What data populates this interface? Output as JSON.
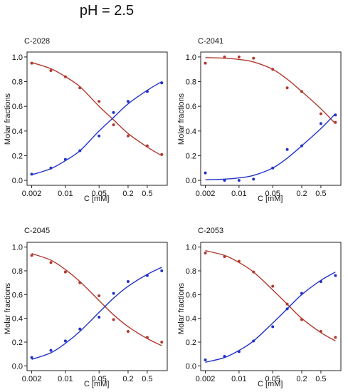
{
  "title": "pH = 2.5",
  "colors": {
    "red": "#b03a2e",
    "blue": "#2233c8",
    "axis": "#222222"
  },
  "chart_data": [
    {
      "type": "scatter",
      "panel": "C-2028",
      "xlabel": "C [mM]",
      "ylabel": "Molar fractions",
      "x_scale": "log",
      "xlim": [
        0.0016,
        1.3
      ],
      "ylim": [
        -0.04,
        1.04
      ],
      "x_ticks": [
        0.002,
        0.01,
        0.05,
        0.2,
        0.5
      ],
      "x_tick_labels": [
        "0.002",
        "0.01",
        "0.05",
        "0.2",
        "0.5"
      ],
      "y_ticks": [
        0.0,
        0.2,
        0.4,
        0.6,
        0.8,
        1.0
      ],
      "y_tick_labels": [
        "0.0",
        "0.2",
        "0.4",
        "0.6",
        "0.8",
        "1.0"
      ],
      "series": [
        {
          "color": "red",
          "points": [
            [
              0.002,
              0.95
            ],
            [
              0.005,
              0.89
            ],
            [
              0.01,
              0.84
            ],
            [
              0.02,
              0.75
            ],
            [
              0.05,
              0.64
            ],
            [
              0.1,
              0.45
            ],
            [
              0.2,
              0.36
            ],
            [
              0.5,
              0.28
            ],
            [
              1.0,
              0.21
            ]
          ],
          "curve": [
            [
              0.002,
              0.955
            ],
            [
              0.005,
              0.905
            ],
            [
              0.01,
              0.84
            ],
            [
              0.02,
              0.76
            ],
            [
              0.05,
              0.6
            ],
            [
              0.1,
              0.49
            ],
            [
              0.2,
              0.38
            ],
            [
              0.5,
              0.27
            ],
            [
              1.0,
              0.2
            ]
          ]
        },
        {
          "color": "blue",
          "points": [
            [
              0.002,
              0.05
            ],
            [
              0.005,
              0.1
            ],
            [
              0.01,
              0.17
            ],
            [
              0.02,
              0.24
            ],
            [
              0.05,
              0.36
            ],
            [
              0.1,
              0.55
            ],
            [
              0.2,
              0.64
            ],
            [
              0.5,
              0.72
            ],
            [
              1.0,
              0.79
            ]
          ],
          "curve": [
            [
              0.002,
              0.045
            ],
            [
              0.005,
              0.095
            ],
            [
              0.01,
              0.16
            ],
            [
              0.02,
              0.24
            ],
            [
              0.05,
              0.4
            ],
            [
              0.1,
              0.51
            ],
            [
              0.2,
              0.62
            ],
            [
              0.5,
              0.73
            ],
            [
              1.0,
              0.8
            ]
          ]
        }
      ]
    },
    {
      "type": "scatter",
      "panel": "C-2041",
      "xlabel": "C [mM]",
      "ylabel": "Molar fractions",
      "x_scale": "log",
      "xlim": [
        0.0016,
        1.3
      ],
      "ylim": [
        -0.04,
        1.04
      ],
      "x_ticks": [
        0.002,
        0.01,
        0.05,
        0.2,
        0.5
      ],
      "x_tick_labels": [
        "0.002",
        "0.01",
        "0.05",
        "0.2",
        "0.5"
      ],
      "y_ticks": [
        0.0,
        0.2,
        0.4,
        0.6,
        0.8,
        1.0
      ],
      "y_tick_labels": [
        "0.0",
        "0.2",
        "0.4",
        "0.6",
        "0.8",
        "1.0"
      ],
      "series": [
        {
          "color": "red",
          "points": [
            [
              0.002,
              0.95
            ],
            [
              0.005,
              1.0
            ],
            [
              0.01,
              1.0
            ],
            [
              0.02,
              0.99
            ],
            [
              0.05,
              0.9
            ],
            [
              0.1,
              0.75
            ],
            [
              0.2,
              0.72
            ],
            [
              0.5,
              0.54
            ],
            [
              1.0,
              0.47
            ]
          ],
          "curve": [
            [
              0.002,
              0.995
            ],
            [
              0.005,
              0.99
            ],
            [
              0.01,
              0.98
            ],
            [
              0.02,
              0.96
            ],
            [
              0.05,
              0.9
            ],
            [
              0.1,
              0.82
            ],
            [
              0.2,
              0.72
            ],
            [
              0.5,
              0.58
            ],
            [
              1.0,
              0.46
            ]
          ]
        },
        {
          "color": "blue",
          "points": [
            [
              0.002,
              0.06
            ],
            [
              0.005,
              0.0
            ],
            [
              0.01,
              0.0
            ],
            [
              0.02,
              0.01
            ],
            [
              0.05,
              0.1
            ],
            [
              0.1,
              0.25
            ],
            [
              0.2,
              0.28
            ],
            [
              0.5,
              0.46
            ],
            [
              1.0,
              0.53
            ]
          ],
          "curve": [
            [
              0.002,
              0.005
            ],
            [
              0.005,
              0.01
            ],
            [
              0.01,
              0.02
            ],
            [
              0.02,
              0.04
            ],
            [
              0.05,
              0.1
            ],
            [
              0.1,
              0.18
            ],
            [
              0.2,
              0.28
            ],
            [
              0.5,
              0.42
            ],
            [
              1.0,
              0.54
            ]
          ]
        }
      ]
    },
    {
      "type": "scatter",
      "panel": "C-2045",
      "xlabel": "C [mM]",
      "ylabel": "Molar fractions",
      "x_scale": "log",
      "xlim": [
        0.0016,
        1.3
      ],
      "ylim": [
        -0.04,
        1.04
      ],
      "x_ticks": [
        0.002,
        0.01,
        0.05,
        0.2,
        0.5
      ],
      "x_tick_labels": [
        "0.002",
        "0.01",
        "0.05",
        "0.2",
        "0.5"
      ],
      "y_ticks": [
        0.0,
        0.2,
        0.4,
        0.6,
        0.8,
        1.0
      ],
      "y_tick_labels": [
        "0.0",
        "0.2",
        "0.4",
        "0.6",
        "0.8",
        "1.0"
      ],
      "series": [
        {
          "color": "red",
          "points": [
            [
              0.002,
              0.93
            ],
            [
              0.005,
              0.87
            ],
            [
              0.01,
              0.79
            ],
            [
              0.02,
              0.7
            ],
            [
              0.05,
              0.59
            ],
            [
              0.1,
              0.39
            ],
            [
              0.2,
              0.29
            ],
            [
              0.5,
              0.24
            ],
            [
              1.0,
              0.2
            ]
          ],
          "curve": [
            [
              0.002,
              0.945
            ],
            [
              0.005,
              0.89
            ],
            [
              0.01,
              0.81
            ],
            [
              0.02,
              0.71
            ],
            [
              0.05,
              0.55
            ],
            [
              0.1,
              0.43
            ],
            [
              0.2,
              0.33
            ],
            [
              0.5,
              0.23
            ],
            [
              1.0,
              0.17
            ]
          ]
        },
        {
          "color": "blue",
          "points": [
            [
              0.002,
              0.07
            ],
            [
              0.005,
              0.13
            ],
            [
              0.01,
              0.21
            ],
            [
              0.02,
              0.31
            ],
            [
              0.05,
              0.41
            ],
            [
              0.1,
              0.61
            ],
            [
              0.2,
              0.71
            ],
            [
              0.5,
              0.76
            ],
            [
              1.0,
              0.8
            ]
          ],
          "curve": [
            [
              0.002,
              0.055
            ],
            [
              0.005,
              0.11
            ],
            [
              0.01,
              0.19
            ],
            [
              0.02,
              0.29
            ],
            [
              0.05,
              0.45
            ],
            [
              0.1,
              0.57
            ],
            [
              0.2,
              0.67
            ],
            [
              0.5,
              0.77
            ],
            [
              1.0,
              0.83
            ]
          ]
        }
      ]
    },
    {
      "type": "scatter",
      "panel": "C-2053",
      "xlabel": "C [mM]",
      "ylabel": "Molar fractions",
      "x_scale": "log",
      "xlim": [
        0.0016,
        1.3
      ],
      "ylim": [
        -0.04,
        1.04
      ],
      "x_ticks": [
        0.002,
        0.01,
        0.05,
        0.2,
        0.5
      ],
      "x_tick_labels": [
        "0.002",
        "0.01",
        "0.05",
        "0.2",
        "0.5"
      ],
      "y_ticks": [
        0.0,
        0.2,
        0.4,
        0.6,
        0.8,
        1.0
      ],
      "y_tick_labels": [
        "0.0",
        "0.2",
        "0.4",
        "0.6",
        "0.8",
        "1.0"
      ],
      "series": [
        {
          "color": "red",
          "points": [
            [
              0.002,
              0.95
            ],
            [
              0.005,
              0.92
            ],
            [
              0.01,
              0.88
            ],
            [
              0.02,
              0.79
            ],
            [
              0.05,
              0.67
            ],
            [
              0.1,
              0.52
            ],
            [
              0.2,
              0.39
            ],
            [
              0.5,
              0.29
            ],
            [
              1.0,
              0.24
            ]
          ],
          "curve": [
            [
              0.002,
              0.97
            ],
            [
              0.005,
              0.93
            ],
            [
              0.01,
              0.87
            ],
            [
              0.02,
              0.79
            ],
            [
              0.05,
              0.64
            ],
            [
              0.1,
              0.52
            ],
            [
              0.2,
              0.4
            ],
            [
              0.5,
              0.28
            ],
            [
              1.0,
              0.21
            ]
          ]
        },
        {
          "color": "blue",
          "points": [
            [
              0.002,
              0.05
            ],
            [
              0.005,
              0.08
            ],
            [
              0.01,
              0.12
            ],
            [
              0.02,
              0.21
            ],
            [
              0.05,
              0.33
            ],
            [
              0.1,
              0.48
            ],
            [
              0.2,
              0.61
            ],
            [
              0.5,
              0.71
            ],
            [
              1.0,
              0.76
            ]
          ],
          "curve": [
            [
              0.002,
              0.03
            ],
            [
              0.005,
              0.07
            ],
            [
              0.01,
              0.13
            ],
            [
              0.02,
              0.21
            ],
            [
              0.05,
              0.36
            ],
            [
              0.1,
              0.48
            ],
            [
              0.2,
              0.6
            ],
            [
              0.5,
              0.72
            ],
            [
              1.0,
              0.79
            ]
          ]
        }
      ]
    }
  ]
}
